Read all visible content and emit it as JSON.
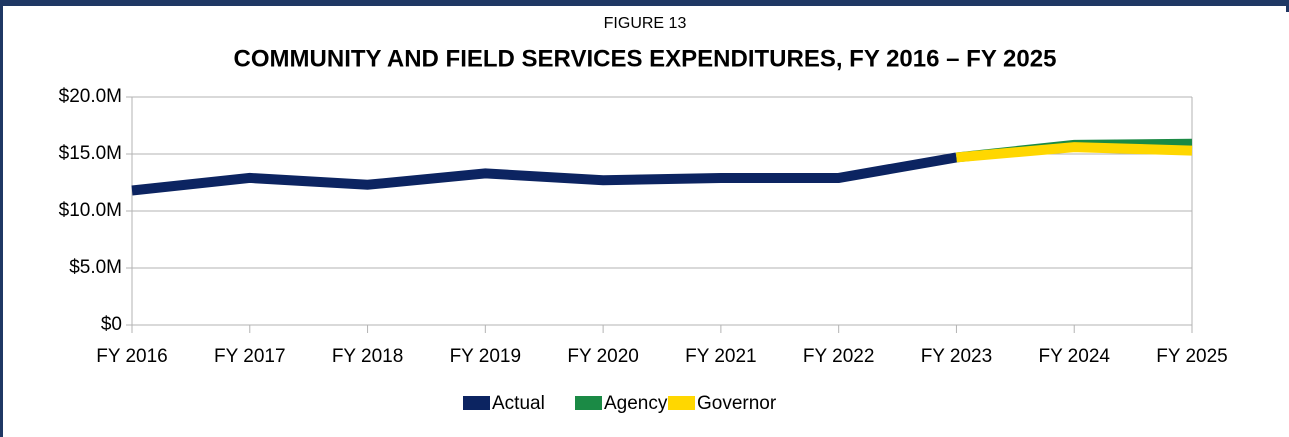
{
  "chart_data": {
    "type": "line",
    "subtitle": "FIGURE 13",
    "title": "COMMUNITY AND FIELD SERVICES EXPENDITURES, FY 2016 – FY 2025",
    "categories": [
      "FY 2016",
      "FY 2017",
      "FY 2018",
      "FY 2019",
      "FY 2020",
      "FY 2021",
      "FY 2022",
      "FY 2023",
      "FY 2024",
      "FY 2025"
    ],
    "series": [
      {
        "name": "Actual",
        "color": "#0c2461",
        "values": [
          11800000,
          12900000,
          12300000,
          13300000,
          12700000,
          12900000,
          12900000,
          14700000,
          null,
          null
        ]
      },
      {
        "name": "Agency",
        "color": "#1b8a45",
        "values": [
          null,
          null,
          null,
          null,
          null,
          null,
          null,
          14700000,
          15800000,
          15900000
        ]
      },
      {
        "name": "Governor",
        "color": "#ffd700",
        "values": [
          null,
          null,
          null,
          null,
          null,
          null,
          null,
          14700000,
          15600000,
          15300000
        ]
      }
    ],
    "ylim": [
      0,
      20000000
    ],
    "yticks": [
      {
        "value": 0,
        "label": "$0"
      },
      {
        "value": 5000000,
        "label": "$5.0M"
      },
      {
        "value": 10000000,
        "label": "$10.0M"
      },
      {
        "value": 15000000,
        "label": "$15.0M"
      },
      {
        "value": 20000000,
        "label": "$20.0M"
      }
    ],
    "grid": true,
    "legend": "bottom"
  }
}
